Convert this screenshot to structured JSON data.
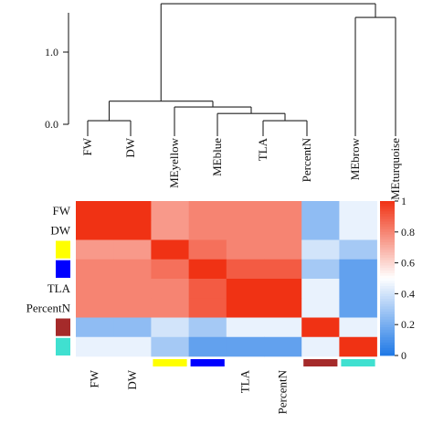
{
  "chart_data": [
    {
      "type": "dendrogram",
      "yticks": [
        "0.0",
        "1.0"
      ],
      "ylim": [
        0,
        1.9
      ],
      "leaves": [
        "FW",
        "DW",
        "MEyellow",
        "MEblue",
        "TLA",
        "PercentN",
        "MEbrow",
        "MEturquoise"
      ],
      "merges": [
        {
          "a": "FW",
          "b": "DW",
          "height": 0.05
        },
        {
          "a": "TLA",
          "b": "PercentN",
          "height": 0.05
        },
        {
          "a": "MEblue",
          "b": "TLA+PercentN",
          "height": 0.15
        },
        {
          "a": "MEyellow",
          "b": "MEblue+TLA+PercentN",
          "height": 0.24
        },
        {
          "a": "FW+DW",
          "b": "MEyellow+MEblue+TLA+PercentN",
          "height": 0.32
        },
        {
          "a": "MEbrow",
          "b": "MEturquoise",
          "height": 1.48
        },
        {
          "a": "left",
          "b": "right",
          "height": 1.67
        }
      ]
    },
    {
      "type": "heatmap",
      "rows": [
        "FW",
        "DW",
        "MEyellow",
        "MEblue",
        "TLA",
        "PercentN",
        "MEbrow",
        "MEturquoise"
      ],
      "columns": [
        "FW",
        "DW",
        "MEyellow",
        "MEblue",
        "TLA",
        "PercentN",
        "MEbrow",
        "MEturquoise"
      ],
      "row_labels": [
        "FW",
        "DW",
        "",
        "",
        "TLA",
        "PercentN",
        "",
        ""
      ],
      "col_labels": [
        "FW",
        "DW",
        "",
        "",
        "TLA",
        "PercentN",
        "",
        ""
      ],
      "module_colors": [
        "",
        "",
        "#ffff00",
        "#0000ff",
        "",
        "",
        "#a52a2a",
        "#40e0d0"
      ],
      "values": [
        [
          1.0,
          1.0,
          0.75,
          0.8,
          0.8,
          0.8,
          0.25,
          0.45
        ],
        [
          1.0,
          1.0,
          0.75,
          0.8,
          0.8,
          0.8,
          0.25,
          0.45
        ],
        [
          0.75,
          0.75,
          1.0,
          0.85,
          0.8,
          0.8,
          0.4,
          0.3
        ],
        [
          0.8,
          0.8,
          0.85,
          1.0,
          0.9,
          0.9,
          0.3,
          0.15
        ],
        [
          0.8,
          0.8,
          0.8,
          0.9,
          1.0,
          1.0,
          0.45,
          0.15
        ],
        [
          0.8,
          0.8,
          0.8,
          0.9,
          1.0,
          1.0,
          0.45,
          0.15
        ],
        [
          0.25,
          0.25,
          0.4,
          0.3,
          0.45,
          0.45,
          1.0,
          0.45
        ],
        [
          0.45,
          0.45,
          0.3,
          0.15,
          0.15,
          0.15,
          0.45,
          1.0
        ]
      ],
      "colorbar_ticks": [
        "0",
        "0.2",
        "0.4",
        "0.6",
        "0.8",
        "1"
      ],
      "range": [
        0,
        1
      ],
      "colors": {
        "low": "#1e78e6",
        "mid": "#ffffff",
        "high": "#f03214"
      }
    }
  ]
}
